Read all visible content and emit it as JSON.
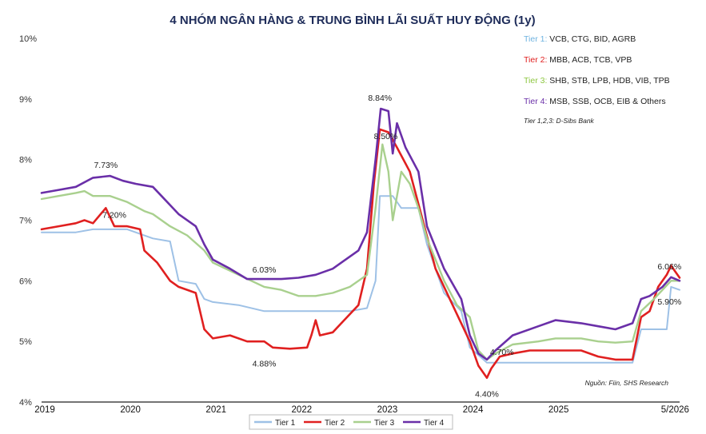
{
  "chart_data": {
    "type": "line",
    "title": "4 NHÓM NGÂN HÀNG & TRUNG BÌNH LÃI SUẤT HUY ĐỘNG (1y)",
    "ylim": [
      4,
      10
    ],
    "yticks": [
      "4%",
      "5%",
      "6%",
      "7%",
      "8%",
      "9%",
      "10%"
    ],
    "xlim": [
      2019,
      2026.45
    ],
    "xticks": [
      {
        "x": 2019,
        "label": "2019"
      },
      {
        "x": 2020,
        "label": "2020"
      },
      {
        "x": 2021,
        "label": "2021"
      },
      {
        "x": 2022,
        "label": "2022"
      },
      {
        "x": 2023,
        "label": "2023"
      },
      {
        "x": 2024,
        "label": "2024"
      },
      {
        "x": 2025,
        "label": "2025"
      },
      {
        "x": 2026.36,
        "label": "5/2026"
      }
    ],
    "series": [
      {
        "name": "Tier 1",
        "color": "#9ec1e6",
        "points": [
          [
            2019.0,
            6.8
          ],
          [
            2019.4,
            6.8
          ],
          [
            2019.6,
            6.85
          ],
          [
            2020.0,
            6.85
          ],
          [
            2020.3,
            6.7
          ],
          [
            2020.5,
            6.65
          ],
          [
            2020.6,
            6.0
          ],
          [
            2020.8,
            5.95
          ],
          [
            2020.9,
            5.7
          ],
          [
            2021.0,
            5.65
          ],
          [
            2021.3,
            5.6
          ],
          [
            2021.6,
            5.5
          ],
          [
            2022.0,
            5.5
          ],
          [
            2022.6,
            5.5
          ],
          [
            2022.8,
            5.55
          ],
          [
            2022.9,
            6.0
          ],
          [
            2022.95,
            7.4
          ],
          [
            2023.1,
            7.4
          ],
          [
            2023.2,
            7.2
          ],
          [
            2023.4,
            7.2
          ],
          [
            2023.5,
            6.6
          ],
          [
            2023.7,
            5.8
          ],
          [
            2023.9,
            5.5
          ],
          [
            2024.0,
            4.9
          ],
          [
            2024.2,
            4.65
          ],
          [
            2024.5,
            4.65
          ],
          [
            2025.0,
            4.65
          ],
          [
            2025.5,
            4.65
          ],
          [
            2025.9,
            4.65
          ],
          [
            2026.0,
            5.2
          ],
          [
            2026.2,
            5.2
          ],
          [
            2026.3,
            5.2
          ],
          [
            2026.35,
            5.9
          ],
          [
            2026.45,
            5.85
          ]
        ]
      },
      {
        "name": "Tier 2",
        "color": "#e02020",
        "points": [
          [
            2019.0,
            6.85
          ],
          [
            2019.2,
            6.9
          ],
          [
            2019.4,
            6.95
          ],
          [
            2019.5,
            7.0
          ],
          [
            2019.6,
            6.95
          ],
          [
            2019.75,
            7.2
          ],
          [
            2019.85,
            6.9
          ],
          [
            2020.0,
            6.9
          ],
          [
            2020.15,
            6.85
          ],
          [
            2020.2,
            6.5
          ],
          [
            2020.35,
            6.3
          ],
          [
            2020.5,
            6.0
          ],
          [
            2020.6,
            5.9
          ],
          [
            2020.8,
            5.8
          ],
          [
            2020.9,
            5.2
          ],
          [
            2021.0,
            5.05
          ],
          [
            2021.2,
            5.1
          ],
          [
            2021.4,
            5.0
          ],
          [
            2021.6,
            5.0
          ],
          [
            2021.7,
            4.9
          ],
          [
            2021.9,
            4.88
          ],
          [
            2022.1,
            4.9
          ],
          [
            2022.15,
            5.1
          ],
          [
            2022.2,
            5.35
          ],
          [
            2022.25,
            5.1
          ],
          [
            2022.4,
            5.15
          ],
          [
            2022.5,
            5.3
          ],
          [
            2022.7,
            5.6
          ],
          [
            2022.8,
            6.2
          ],
          [
            2022.88,
            7.6
          ],
          [
            2022.95,
            8.5
          ],
          [
            2023.05,
            8.45
          ],
          [
            2023.15,
            8.2
          ],
          [
            2023.3,
            7.8
          ],
          [
            2023.45,
            7.0
          ],
          [
            2023.6,
            6.2
          ],
          [
            2023.8,
            5.6
          ],
          [
            2024.0,
            5.0
          ],
          [
            2024.1,
            4.6
          ],
          [
            2024.2,
            4.4
          ],
          [
            2024.25,
            4.55
          ],
          [
            2024.35,
            4.75
          ],
          [
            2024.5,
            4.8
          ],
          [
            2024.7,
            4.85
          ],
          [
            2025.0,
            4.85
          ],
          [
            2025.3,
            4.85
          ],
          [
            2025.5,
            4.75
          ],
          [
            2025.7,
            4.7
          ],
          [
            2025.9,
            4.7
          ],
          [
            2026.0,
            5.4
          ],
          [
            2026.1,
            5.5
          ],
          [
            2026.2,
            5.9
          ],
          [
            2026.3,
            6.1
          ],
          [
            2026.35,
            6.25
          ],
          [
            2026.45,
            6.05
          ]
        ]
      },
      {
        "name": "Tier 3",
        "color": "#a9d08e",
        "points": [
          [
            2019.0,
            7.35
          ],
          [
            2019.2,
            7.4
          ],
          [
            2019.4,
            7.45
          ],
          [
            2019.5,
            7.48
          ],
          [
            2019.6,
            7.4
          ],
          [
            2019.8,
            7.4
          ],
          [
            2020.0,
            7.3
          ],
          [
            2020.2,
            7.15
          ],
          [
            2020.3,
            7.1
          ],
          [
            2020.5,
            6.9
          ],
          [
            2020.7,
            6.75
          ],
          [
            2020.9,
            6.5
          ],
          [
            2021.0,
            6.3
          ],
          [
            2021.3,
            6.1
          ],
          [
            2021.6,
            5.9
          ],
          [
            2021.8,
            5.85
          ],
          [
            2022.0,
            5.75
          ],
          [
            2022.2,
            5.75
          ],
          [
            2022.4,
            5.8
          ],
          [
            2022.6,
            5.9
          ],
          [
            2022.8,
            6.1
          ],
          [
            2022.9,
            7.2
          ],
          [
            2022.98,
            8.25
          ],
          [
            2023.05,
            7.8
          ],
          [
            2023.1,
            7.0
          ],
          [
            2023.2,
            7.8
          ],
          [
            2023.3,
            7.6
          ],
          [
            2023.4,
            7.2
          ],
          [
            2023.5,
            6.7
          ],
          [
            2023.7,
            6.0
          ],
          [
            2023.85,
            5.6
          ],
          [
            2024.0,
            5.4
          ],
          [
            2024.1,
            4.85
          ],
          [
            2024.2,
            4.7
          ],
          [
            2024.3,
            4.8
          ],
          [
            2024.5,
            4.95
          ],
          [
            2024.8,
            5.0
          ],
          [
            2025.0,
            5.05
          ],
          [
            2025.3,
            5.05
          ],
          [
            2025.5,
            5.0
          ],
          [
            2025.7,
            4.98
          ],
          [
            2025.9,
            5.0
          ],
          [
            2026.0,
            5.5
          ],
          [
            2026.15,
            5.7
          ],
          [
            2026.25,
            5.85
          ],
          [
            2026.35,
            6.0
          ],
          [
            2026.45,
            6.0
          ]
        ]
      },
      {
        "name": "Tier 4",
        "color": "#6a2fa8",
        "points": [
          [
            2019.0,
            7.45
          ],
          [
            2019.2,
            7.5
          ],
          [
            2019.4,
            7.55
          ],
          [
            2019.6,
            7.7
          ],
          [
            2019.8,
            7.73
          ],
          [
            2019.95,
            7.65
          ],
          [
            2020.1,
            7.6
          ],
          [
            2020.3,
            7.55
          ],
          [
            2020.4,
            7.4
          ],
          [
            2020.6,
            7.1
          ],
          [
            2020.8,
            6.9
          ],
          [
            2020.9,
            6.6
          ],
          [
            2021.0,
            6.35
          ],
          [
            2021.2,
            6.2
          ],
          [
            2021.4,
            6.03
          ],
          [
            2021.6,
            6.03
          ],
          [
            2021.8,
            6.03
          ],
          [
            2022.0,
            6.05
          ],
          [
            2022.2,
            6.1
          ],
          [
            2022.4,
            6.2
          ],
          [
            2022.5,
            6.3
          ],
          [
            2022.7,
            6.5
          ],
          [
            2022.8,
            6.8
          ],
          [
            2022.9,
            8.0
          ],
          [
            2022.96,
            8.84
          ],
          [
            2023.05,
            8.8
          ],
          [
            2023.1,
            8.1
          ],
          [
            2023.15,
            8.6
          ],
          [
            2023.25,
            8.2
          ],
          [
            2023.4,
            7.8
          ],
          [
            2023.5,
            6.9
          ],
          [
            2023.7,
            6.2
          ],
          [
            2023.9,
            5.7
          ],
          [
            2024.0,
            5.1
          ],
          [
            2024.1,
            4.8
          ],
          [
            2024.2,
            4.7
          ],
          [
            2024.3,
            4.85
          ],
          [
            2024.5,
            5.1
          ],
          [
            2024.8,
            5.25
          ],
          [
            2025.0,
            5.35
          ],
          [
            2025.3,
            5.3
          ],
          [
            2025.5,
            5.25
          ],
          [
            2025.7,
            5.2
          ],
          [
            2025.9,
            5.3
          ],
          [
            2026.0,
            5.7
          ],
          [
            2026.1,
            5.75
          ],
          [
            2026.25,
            5.9
          ],
          [
            2026.35,
            6.06
          ],
          [
            2026.45,
            6.0
          ]
        ]
      }
    ],
    "annotations": [
      {
        "x": 2019.75,
        "y": 7.73,
        "text": "7.73%"
      },
      {
        "x": 2019.85,
        "y": 7.2,
        "text": "7.20%"
      },
      {
        "x": 2021.6,
        "y": 6.03,
        "text": "6.03%"
      },
      {
        "x": 2021.6,
        "y": 4.88,
        "text": "4.88%"
      },
      {
        "x": 2022.97,
        "y": 8.84,
        "text": "8.84%"
      },
      {
        "x": 2023.0,
        "y": 8.5,
        "text": "8.50%"
      },
      {
        "x": 2024.3,
        "y": 4.7,
        "text": "4.70%"
      },
      {
        "x": 2024.2,
        "y": 4.4,
        "text": "4.40%"
      },
      {
        "x": 2026.35,
        "y": 6.06,
        "text": "6.06%"
      },
      {
        "x": 2026.35,
        "y": 5.9,
        "text": "5.90%"
      }
    ],
    "legend_top": [
      {
        "prefix": "Tier 1:",
        "text": " VCB, CTG, BID, AGRB",
        "color": "#6fb3e0"
      },
      {
        "prefix": "Tier 2:",
        "text": " MBB, ACB, TCB, VPB",
        "color": "#e02020"
      },
      {
        "prefix": "Tier 3:",
        "text": " SHB, STB, LPB, HDB, VIB, TPB",
        "color": "#8cc63f"
      },
      {
        "prefix": "Tier 4:",
        "text": " MSB, SSB, OCB, EIB & Others",
        "color": "#6a2fa8"
      }
    ],
    "legend_note": "Tier 1,2,3: D-Sibs Bank",
    "source": "Nguồn: Fiin, SHS Research",
    "legend_bottom": [
      "Tier 1",
      "Tier 2",
      "Tier 3",
      "Tier 4"
    ]
  }
}
